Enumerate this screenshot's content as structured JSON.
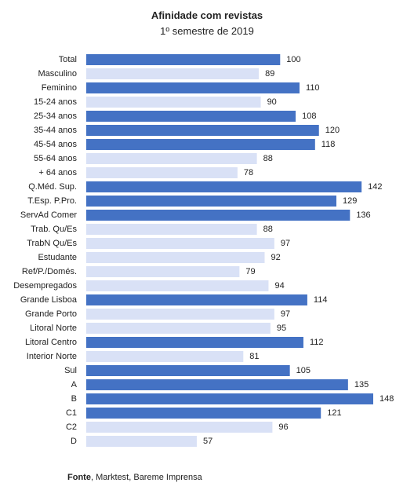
{
  "chart_data": {
    "type": "bar",
    "orientation": "horizontal",
    "title": "Afinidade com revistas",
    "subtitle": "1º semestre de 2019",
    "categories": [
      "Total",
      "Masculino",
      "Feminino",
      "15-24 anos",
      "25-34 anos",
      "35-44 anos",
      "45-54 anos",
      "55-64 anos",
      "+ 64  anos",
      "Q.Méd. Sup.",
      "T.Esp. P.Pro.",
      "ServAd Comer",
      "Trab. Qu/Es",
      "TrabN Qu/Es",
      "Estudante",
      "Ref/P./Domés.",
      "Desempregados",
      "Grande Lisboa",
      "Grande Porto",
      "Litoral Norte",
      "Litoral Centro",
      "Interior Norte",
      "Sul",
      "A",
      "B",
      "C1",
      "C2",
      "D"
    ],
    "values": [
      100,
      89,
      110,
      90,
      108,
      120,
      118,
      88,
      78,
      142,
      129,
      136,
      88,
      97,
      92,
      79,
      94,
      114,
      97,
      95,
      112,
      81,
      105,
      135,
      148,
      121,
      96,
      57
    ],
    "highlight": [
      true,
      false,
      true,
      false,
      true,
      true,
      true,
      false,
      false,
      true,
      true,
      true,
      false,
      false,
      false,
      false,
      false,
      true,
      false,
      false,
      true,
      false,
      true,
      true,
      true,
      true,
      false,
      false
    ],
    "colors": {
      "above": "#4472C4",
      "below": "#D9E1F6"
    },
    "xlim": [
      0,
      148
    ],
    "grid": false,
    "legend": "none"
  },
  "source": {
    "label": "Fonte",
    "text": ", Marktest, Bareme Imprensa"
  }
}
